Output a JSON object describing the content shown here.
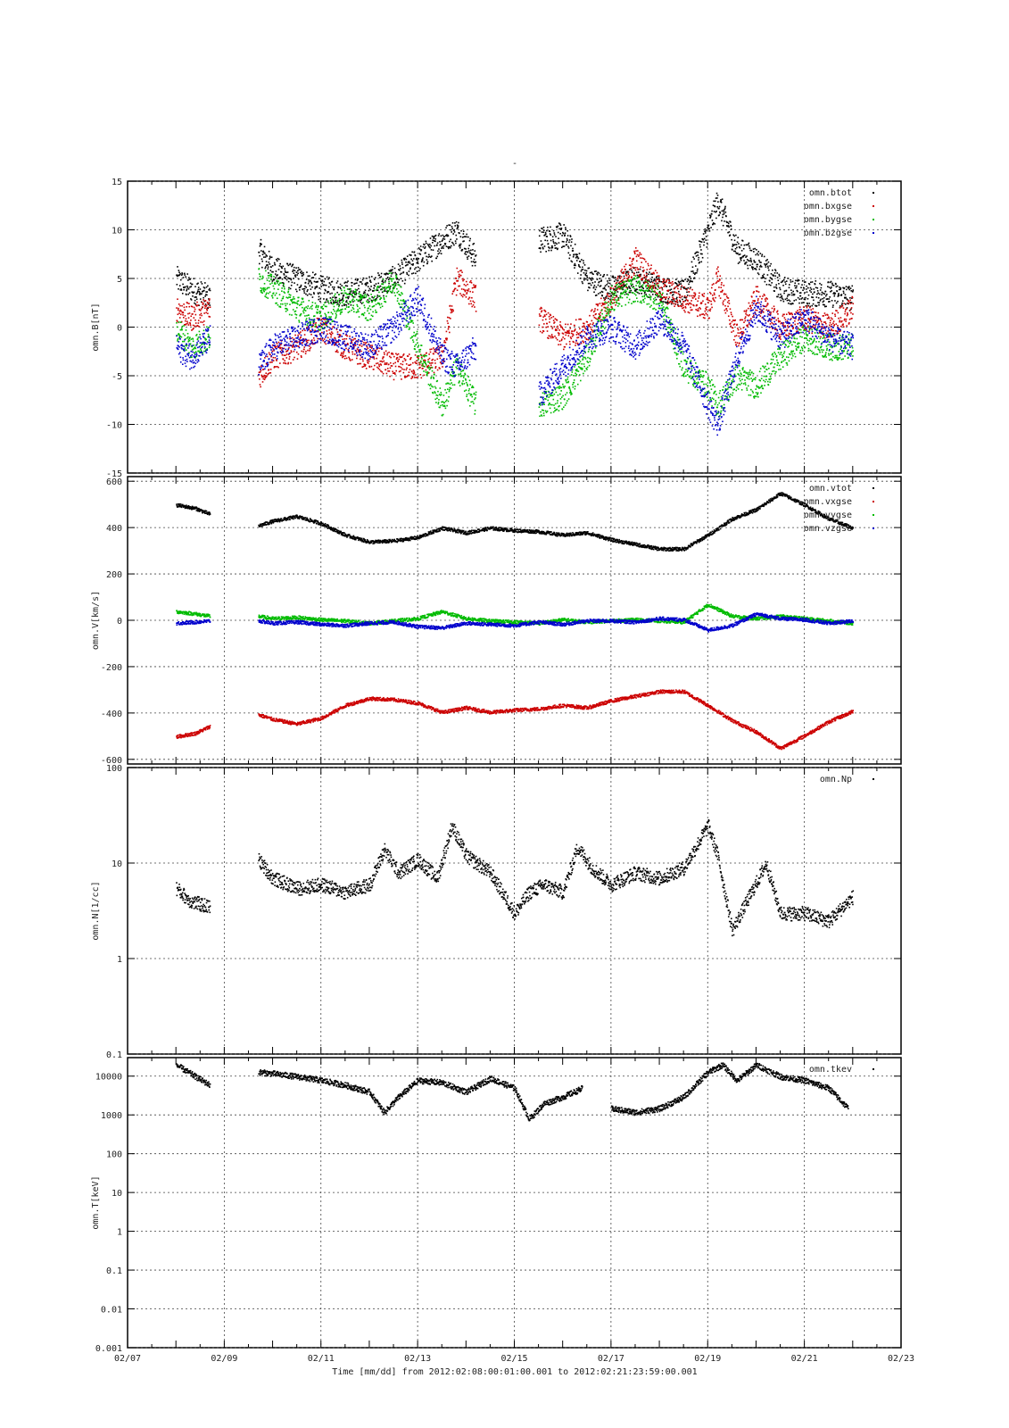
{
  "figure": {
    "title": "-",
    "xlabel": "Time [mm/dd]  from 2012:02:08:00:01:00.001  to  2012:02:21:23:59:00.001",
    "x_ticks": [
      "02/07",
      "02/09",
      "02/11",
      "02/13",
      "02/15",
      "02/17",
      "02/19",
      "02/21",
      "02/23"
    ]
  },
  "chart_data": [
    {
      "type": "scatter",
      "ylabel": "omn.B[nT]",
      "xlim": [
        7,
        23
      ],
      "ylim": [
        -15,
        15
      ],
      "yscale": "linear",
      "y_ticks": [
        15,
        10,
        5,
        0,
        -5,
        -10,
        -15
      ],
      "grid": true,
      "legend_position": "top-right",
      "series": [
        {
          "name": "omn.btot",
          "color": "#000000",
          "x": [
            8.0,
            8.3,
            8.7,
            9.7,
            10.0,
            10.5,
            11.0,
            11.5,
            12.0,
            12.5,
            13.0,
            13.5,
            13.8,
            14.2,
            14.8,
            15.5,
            16.0,
            16.5,
            17.0,
            17.5,
            18.0,
            18.5,
            19.0,
            19.2,
            19.6,
            20.0,
            20.5,
            21.0,
            21.5,
            22.0
          ],
          "values": [
            5,
            4,
            3,
            8,
            6,
            5,
            4,
            3.5,
            4,
            5,
            7,
            9,
            10,
            7,
            8,
            9,
            9.5,
            5,
            4,
            5,
            4,
            3.5,
            10,
            13,
            8,
            7,
            4,
            3.5,
            3.5,
            3
          ]
        },
        {
          "name": "omn.bxgse",
          "color": "#cc0000",
          "x": [
            8.0,
            8.3,
            8.7,
            9.7,
            10.0,
            10.5,
            11.0,
            11.5,
            12.0,
            12.5,
            13.0,
            13.5,
            13.8,
            14.2,
            14.8,
            15.5,
            16.0,
            16.5,
            17.0,
            17.5,
            18.0,
            18.5,
            19.0,
            19.2,
            19.6,
            20.0,
            20.5,
            21.0,
            21.5,
            22.0
          ],
          "values": [
            2,
            1,
            2,
            -5,
            -3,
            -2,
            0,
            -2,
            -3,
            -4,
            -4,
            -3,
            5,
            3,
            -2,
            1,
            -1,
            0,
            3,
            7,
            4,
            3,
            2,
            5,
            -1,
            3,
            0,
            1,
            0,
            2
          ]
        },
        {
          "name": "omn.bygse",
          "color": "#00bb00",
          "x": [
            8.0,
            8.3,
            8.7,
            9.7,
            10.0,
            10.5,
            11.0,
            11.5,
            12.0,
            12.5,
            13.0,
            13.5,
            13.8,
            14.2,
            14.8,
            15.5,
            16.0,
            16.5,
            17.0,
            17.5,
            18.0,
            18.5,
            19.0,
            19.2,
            19.6,
            20.0,
            20.5,
            21.0,
            21.5,
            22.0
          ],
          "values": [
            0,
            -2,
            -1,
            5,
            4,
            2,
            1,
            3,
            2,
            5,
            -2,
            -8,
            -4,
            -8,
            -6,
            -8,
            -7,
            -3,
            3,
            4,
            3,
            -4,
            -6,
            -8,
            -5,
            -6,
            -3,
            -1,
            -2,
            -2
          ]
        },
        {
          "name": "omn.bzgse",
          "color": "#0000cc",
          "x": [
            8.0,
            8.3,
            8.7,
            9.7,
            10.0,
            10.5,
            11.0,
            11.5,
            12.0,
            12.5,
            13.0,
            13.5,
            13.8,
            14.2,
            14.8,
            15.5,
            16.0,
            16.5,
            17.0,
            17.5,
            18.0,
            18.5,
            19.0,
            19.2,
            19.6,
            20.0,
            20.5,
            21.0,
            21.5,
            22.0
          ],
          "values": [
            -2,
            -3,
            -1,
            -4,
            -2,
            -1,
            0,
            -1,
            -2,
            0,
            3,
            -3,
            -4,
            -2,
            -6,
            -7,
            -4,
            -1,
            0,
            -2,
            1,
            -2,
            -8,
            -10,
            -3,
            2,
            -1,
            1,
            -1,
            -2
          ]
        }
      ]
    },
    {
      "type": "scatter",
      "ylabel": "omn.V[km/s]",
      "xlim": [
        7,
        23
      ],
      "ylim": [
        -620,
        620
      ],
      "yscale": "linear",
      "y_ticks": [
        600,
        400,
        200,
        0,
        -200,
        -400,
        -600
      ],
      "grid": true,
      "legend_position": "top-right",
      "series": [
        {
          "name": "omn.vtot",
          "color": "#000000",
          "x": [
            8.0,
            8.4,
            8.7,
            9.7,
            10.0,
            10.5,
            11.0,
            11.5,
            12.0,
            12.5,
            13.0,
            13.5,
            14.0,
            14.5,
            15.0,
            15.5,
            16.0,
            16.5,
            17.0,
            17.5,
            18.0,
            18.5,
            19.0,
            19.5,
            20.0,
            20.5,
            21.0,
            21.5,
            22.0
          ],
          "values": [
            500,
            485,
            460,
            410,
            430,
            450,
            420,
            370,
            340,
            345,
            360,
            400,
            380,
            400,
            390,
            385,
            370,
            380,
            350,
            330,
            310,
            310,
            370,
            440,
            480,
            550,
            500,
            440,
            400
          ]
        },
        {
          "name": "omn.vxgse",
          "color": "#cc0000",
          "x": [
            8.0,
            8.4,
            8.7,
            9.7,
            10.0,
            10.5,
            11.0,
            11.5,
            12.0,
            12.5,
            13.0,
            13.5,
            14.0,
            14.5,
            15.0,
            15.5,
            16.0,
            16.5,
            17.0,
            17.5,
            18.0,
            18.5,
            19.0,
            19.5,
            20.0,
            20.5,
            21.0,
            21.5,
            22.0
          ],
          "values": [
            -500,
            -485,
            -455,
            -405,
            -425,
            -445,
            -420,
            -365,
            -335,
            -340,
            -355,
            -395,
            -375,
            -395,
            -385,
            -380,
            -365,
            -375,
            -345,
            -325,
            -305,
            -305,
            -365,
            -430,
            -480,
            -550,
            -495,
            -435,
            -390
          ]
        },
        {
          "name": "omn.vygse",
          "color": "#00bb00",
          "x": [
            8.0,
            8.4,
            8.7,
            9.7,
            10.0,
            10.5,
            11.0,
            11.5,
            12.0,
            12.5,
            13.0,
            13.5,
            14.0,
            14.5,
            15.0,
            15.5,
            16.0,
            16.5,
            17.0,
            17.5,
            18.0,
            18.5,
            19.0,
            19.5,
            20.0,
            20.5,
            21.0,
            21.5,
            22.0
          ],
          "values": [
            40,
            30,
            20,
            20,
            10,
            15,
            5,
            0,
            -10,
            0,
            10,
            40,
            10,
            0,
            -5,
            -10,
            5,
            -5,
            0,
            5,
            0,
            -5,
            70,
            20,
            10,
            20,
            10,
            0,
            -10
          ]
        },
        {
          "name": "omn.vzgse",
          "color": "#0000cc",
          "x": [
            8.0,
            8.4,
            8.7,
            9.7,
            10.0,
            10.5,
            11.0,
            11.5,
            12.0,
            12.5,
            13.0,
            13.5,
            14.0,
            14.5,
            15.0,
            15.5,
            16.0,
            16.5,
            17.0,
            17.5,
            18.0,
            18.5,
            19.0,
            19.5,
            20.0,
            20.5,
            21.0,
            21.5,
            22.0
          ],
          "values": [
            -10,
            -5,
            0,
            0,
            -10,
            -5,
            -15,
            -20,
            -10,
            -5,
            -25,
            -30,
            -10,
            -15,
            -20,
            -5,
            -15,
            0,
            0,
            -5,
            10,
            5,
            -40,
            -20,
            30,
            10,
            5,
            -10,
            0
          ]
        }
      ]
    },
    {
      "type": "scatter",
      "ylabel": "omn.N[1/cc]",
      "xlim": [
        7,
        23
      ],
      "ylim": [
        0.1,
        100
      ],
      "yscale": "log",
      "y_ticks": [
        "100",
        "10",
        "1",
        "0.1"
      ],
      "y_tick_values": [
        100,
        10,
        1,
        0.1
      ],
      "grid": true,
      "legend_position": "top-right",
      "series": [
        {
          "name": "omn.Np",
          "color": "#000000",
          "x": [
            8.0,
            8.3,
            8.7,
            9.7,
            10.0,
            10.5,
            11.0,
            11.5,
            12.0,
            12.3,
            12.6,
            13.0,
            13.4,
            13.7,
            14.0,
            14.5,
            15.0,
            15.3,
            15.6,
            16.0,
            16.3,
            16.6,
            17.0,
            17.5,
            18.0,
            18.5,
            19.0,
            19.2,
            19.5,
            19.8,
            20.2,
            20.5,
            21.0,
            21.5,
            22.0
          ],
          "values": [
            5.5,
            4,
            3.5,
            11,
            7,
            5.5,
            6,
            5,
            6,
            14,
            8,
            11,
            7,
            25,
            12,
            8,
            3,
            5,
            6,
            5,
            15,
            9,
            6,
            8,
            7,
            9,
            25,
            12,
            2,
            4,
            10,
            3,
            3,
            2.5,
            4.5
          ]
        }
      ]
    },
    {
      "type": "scatter",
      "ylabel": "omn.T[keV]",
      "xlim": [
        7,
        23
      ],
      "ylim": [
        0.001,
        30000
      ],
      "yscale": "log",
      "y_ticks": [
        "10000",
        "1000",
        "100",
        "10",
        "1",
        "0.1",
        "0.01",
        "0.001"
      ],
      "y_tick_values": [
        10000,
        1000,
        100,
        10,
        1,
        0.1,
        0.01,
        0.001
      ],
      "grid": true,
      "legend_position": "top-right",
      "series": [
        {
          "name": "omn.tkev",
          "color": "#000000",
          "x": [
            8.0,
            8.4,
            8.7,
            9.7,
            10.0,
            10.5,
            11.0,
            11.5,
            12.0,
            12.3,
            12.6,
            13.0,
            13.5,
            14.0,
            14.5,
            15.0,
            15.3,
            15.6,
            16.0,
            16.4,
            17.0,
            17.5,
            18.0,
            18.5,
            19.0,
            19.3,
            19.6,
            20.0,
            20.5,
            21.0,
            21.5,
            21.9
          ],
          "values": [
            20000,
            10000,
            6000,
            13000,
            12000,
            10000,
            8000,
            6000,
            4000,
            1200,
            3000,
            8000,
            7000,
            4000,
            9000,
            5000,
            800,
            2000,
            3000,
            5000,
            1500,
            1200,
            1500,
            3000,
            13000,
            20000,
            8000,
            20000,
            10000,
            8000,
            5000,
            1500
          ]
        }
      ]
    }
  ]
}
